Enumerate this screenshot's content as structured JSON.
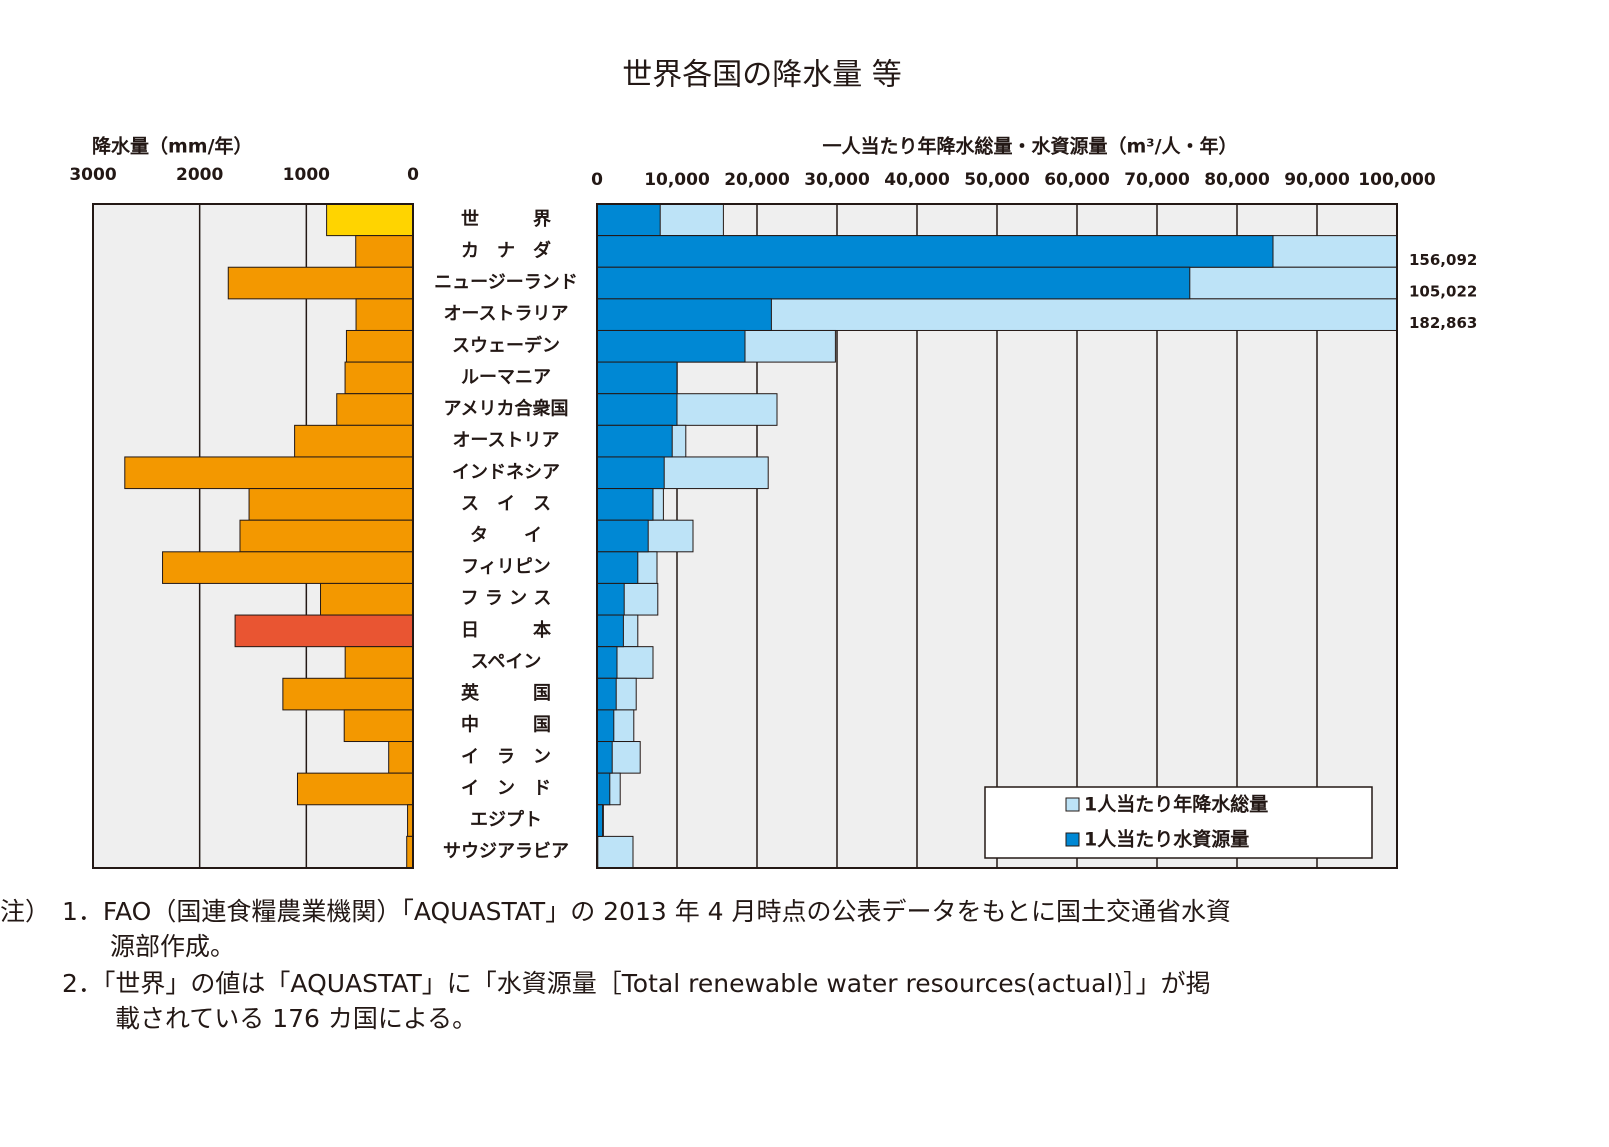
{
  "title": "世界各国の降水量 等",
  "chart_data": [
    {
      "type": "hbar_reversed",
      "x_label": "降水量（mm/年）",
      "categories": [
        "世　　　界",
        "カ　ナ　ダ",
        "ニュージーランド",
        "オーストラリア",
        "スウェーデン",
        "ルーマニア",
        "アメリカ合衆国",
        "オーストリア",
        "インドネシア",
        "ス　イ　ス",
        "タ　　イ",
        "フィリピン",
        "フ ラ ン ス",
        "日　　　本",
        "スペイン",
        "英　　　国",
        "中　　　国",
        "イ　ラ　ン",
        "イ　ン　ド",
        "エジプト",
        "サウジアラビア"
      ],
      "values": [
        810,
        537,
        1732,
        534,
        624,
        637,
        715,
        1110,
        2702,
        1537,
        1622,
        2348,
        867,
        1668,
        636,
        1220,
        645,
        228,
        1083,
        51,
        59
      ],
      "colors": [
        "#ffd400",
        "#f39800",
        "#f39800",
        "#f39800",
        "#f39800",
        "#f39800",
        "#f39800",
        "#f39800",
        "#f39800",
        "#f39800",
        "#f39800",
        "#f39800",
        "#f39800",
        "#e95532",
        "#f39800",
        "#f39800",
        "#f39800",
        "#f39800",
        "#f39800",
        "#f39800",
        "#f39800"
      ],
      "xlim": [
        3000,
        0
      ],
      "xticks": [
        3000,
        2000,
        1000,
        0
      ],
      "grid": true
    },
    {
      "type": "hbar_overlap",
      "x_label": "一人当たり年降水総量・水資源量（m³/人・年）",
      "series": [
        {
          "name": "1人当たり年降水総量",
          "color": "#bde3f7",
          "values": [
            15800,
            156092,
            105022,
            182863,
            29800,
            10000,
            22500,
            11100,
            21400,
            8300,
            12000,
            7500,
            7600,
            5100,
            7000,
            4900,
            4600,
            5400,
            2900,
            800,
            4500
          ],
          "value_labels": [
            null,
            "156,092",
            "105,022",
            "182,863",
            null,
            null,
            null,
            null,
            null,
            null,
            null,
            null,
            null,
            null,
            null,
            null,
            null,
            null,
            null,
            null,
            null
          ]
        },
        {
          "name": "1人当たり水資源量",
          "color": "#0088d4",
          "values": [
            7900,
            84500,
            74100,
            21800,
            18500,
            10000,
            10000,
            9400,
            8400,
            7000,
            6400,
            5100,
            3400,
            3300,
            2500,
            2400,
            2100,
            1900,
            1600,
            700,
            100
          ]
        }
      ],
      "xlim": [
        0,
        100000
      ],
      "xticks": [
        0,
        {
          "value": 10000,
          "label": "10,000"
        },
        {
          "value": 20000,
          "label": "20,000"
        },
        {
          "value": 30000,
          "label": "30,000"
        },
        {
          "value": 40000,
          "label": "40,000"
        },
        {
          "value": 50000,
          "label": "50,000"
        },
        {
          "value": 60000,
          "label": "60,000"
        },
        {
          "value": 70000,
          "label": "70,000"
        },
        {
          "value": 80000,
          "label": "80,000"
        },
        {
          "value": 90000,
          "label": "90,000"
        },
        {
          "value": 100000,
          "label": "100,000"
        }
      ],
      "grid": true,
      "legend": "lower right"
    }
  ],
  "notes": [
    "注）",
    "1．FAO（国連食糧農業機関）「AQUASTAT」の 2013 年 4 月時点の公表データをもとに国土交通省水資",
    "源部作成。",
    "2．「世界」の値は「AQUASTAT」に「水資源量［Total renewable water resources(actual)］」が掲",
    "載されている 176 カ国による。"
  ]
}
